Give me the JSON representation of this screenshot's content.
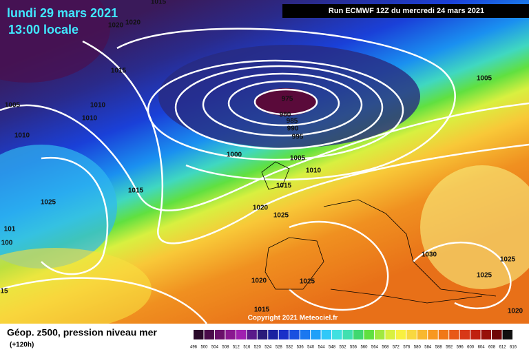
{
  "header": {
    "date": "lundi 29 mars 2021",
    "time": "13:00 locale",
    "run": "Run ECMWF 12Z du mercredi 24 mars 2021"
  },
  "footer": {
    "title": "Géop. z500, pression niveau mer",
    "lead": "(+120h)",
    "copyright": "Copyright 2021 Meteociel.fr"
  },
  "isobar_labels": [
    "1015",
    "1020",
    "1020",
    "1015",
    "1005",
    "1010",
    "1010",
    "1010",
    "975",
    "980",
    "985",
    "990",
    "995",
    "1000",
    "1005",
    "1010",
    "1015",
    "1015",
    "1025",
    "1020",
    "1025",
    "1005",
    "1030",
    "1025",
    "1025",
    "1020",
    "1025",
    "1015",
    "1020",
    "101",
    "100",
    "15"
  ],
  "scale": {
    "labels": [
      496,
      500,
      504,
      508,
      512,
      516,
      520,
      524,
      528,
      532,
      536,
      540,
      544,
      548,
      552,
      556,
      560,
      564,
      568,
      572,
      576,
      580,
      584,
      588,
      592,
      596,
      600,
      604,
      608,
      612,
      616
    ],
    "colors": [
      "#2a0a2a",
      "#4a0c4a",
      "#6a106a",
      "#8a1890",
      "#a020b0",
      "#5a1a8a",
      "#2a1a7a",
      "#1a20a0",
      "#1a30c8",
      "#1a50e0",
      "#1a78f0",
      "#20a0f8",
      "#30c8f8",
      "#40e0e0",
      "#40e0b0",
      "#40d870",
      "#60e040",
      "#a0e840",
      "#d8f040",
      "#f8f040",
      "#f8d840",
      "#f8b830",
      "#f89820",
      "#f07818",
      "#e85818",
      "#d83818",
      "#c02010",
      "#981008",
      "#700808",
      "#101010"
    ]
  }
}
